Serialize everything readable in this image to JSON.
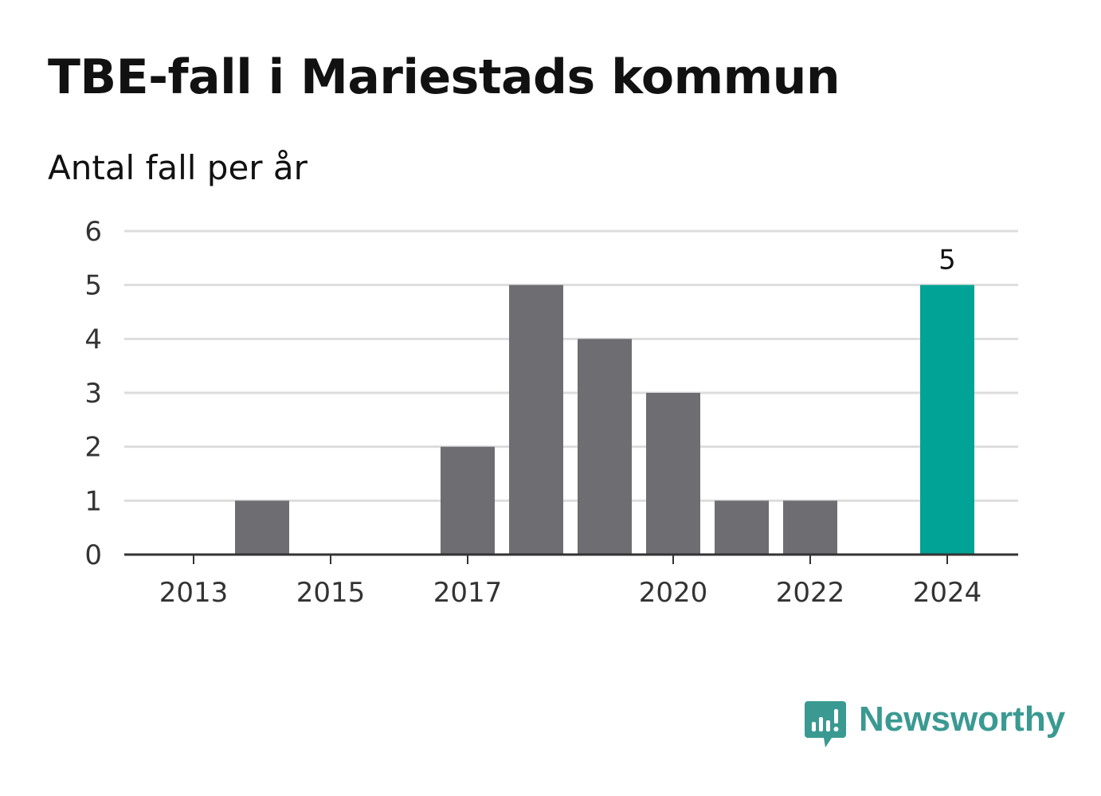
{
  "header": {
    "title": "TBE-fall i Mariestads kommun",
    "subtitle": "Antal fall per år"
  },
  "brand": {
    "name": "Newsworthy",
    "icon": "newsworthy-logo-icon",
    "color": "#3a9a92"
  },
  "chart_data": {
    "type": "bar",
    "categories": [
      2013,
      2014,
      2015,
      2016,
      2017,
      2018,
      2019,
      2020,
      2021,
      2022,
      2023,
      2024
    ],
    "values": [
      0,
      1,
      0,
      0,
      2,
      5,
      4,
      3,
      1,
      1,
      0,
      5
    ],
    "x_tick_labels": [
      "2013",
      "2015",
      "2017",
      "2020",
      "2022",
      "2024"
    ],
    "y_ticks": [
      0,
      1,
      2,
      3,
      4,
      5,
      6
    ],
    "ylim": [
      0,
      6
    ],
    "xlabel": "",
    "ylabel": "",
    "grid": true,
    "highlight_category": 2024,
    "data_labels": [
      {
        "category": 2024,
        "text": "5"
      }
    ],
    "colors": {
      "bar": "#6e6d72",
      "highlight": "#00a396",
      "grid": "#dddddd",
      "axis": "#333333"
    }
  }
}
